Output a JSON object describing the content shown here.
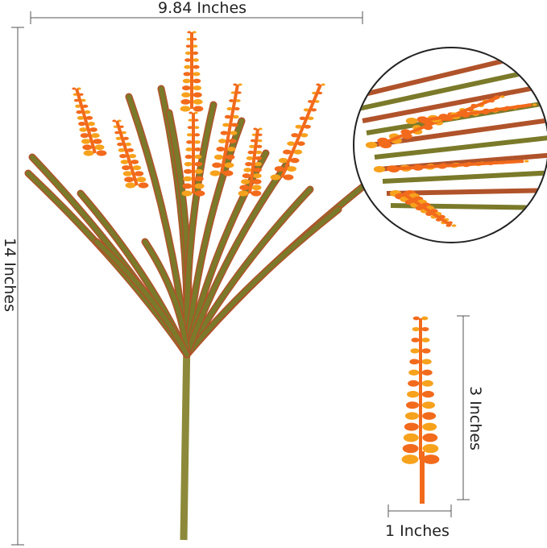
{
  "dimensions": {
    "width_label": "9.84 Inches",
    "height_label": "14 Inches",
    "flower_height_label": "3 Inches",
    "flower_width_label": "1 Inches"
  },
  "colors": {
    "leaf": "#7a7a2a",
    "leaf_edge": "#b0532a",
    "flower_orange": "#f26a1b",
    "flower_yellow": "#f7a21c",
    "line": "#555555"
  }
}
